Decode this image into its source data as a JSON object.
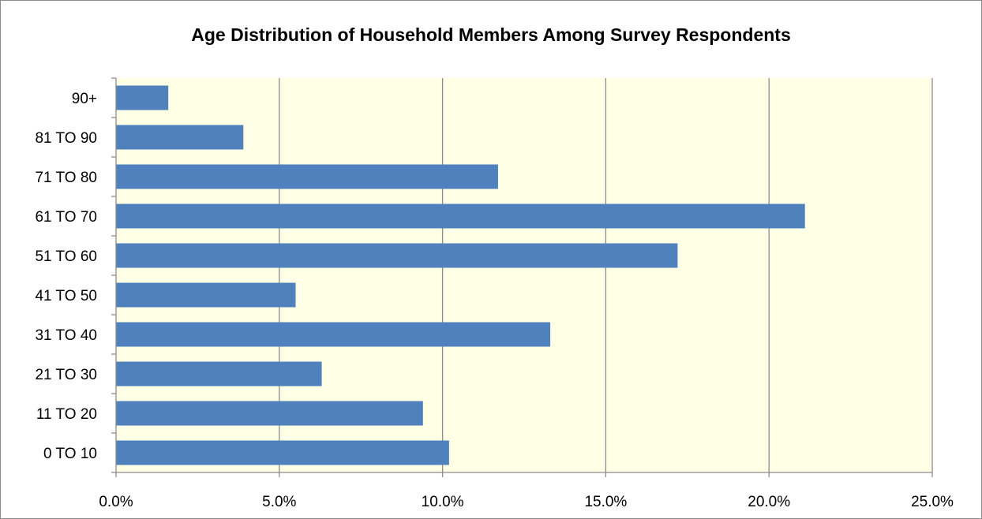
{
  "chart_data": {
    "type": "bar",
    "orientation": "horizontal",
    "title": "Age Distribution of Household Members Among Survey Respondents",
    "categories": [
      "0 TO 10",
      "11 TO 20",
      "21 TO 30",
      "31 TO 40",
      "41 TO 50",
      "51 TO 60",
      "61 TO 70",
      "71 TO 80",
      "81 TO 90",
      "90+"
    ],
    "values": [
      10.2,
      9.4,
      6.3,
      13.3,
      5.5,
      17.2,
      21.1,
      11.7,
      3.9,
      1.6
    ],
    "xlabel": "",
    "ylabel": "",
    "xlim": [
      0,
      25
    ],
    "x_ticks": [
      "0.0%",
      "5.0%",
      "10.0%",
      "15.0%",
      "20.0%",
      "25.0%"
    ],
    "x_tick_values": [
      0,
      5,
      10,
      15,
      20,
      25
    ],
    "grid": "vertical",
    "legend": "none",
    "colors": {
      "bar": "#4f81bd",
      "plot_background": "#ffffe5",
      "gridline": "#8c8c8c",
      "axis": "#8c8c8c"
    }
  }
}
